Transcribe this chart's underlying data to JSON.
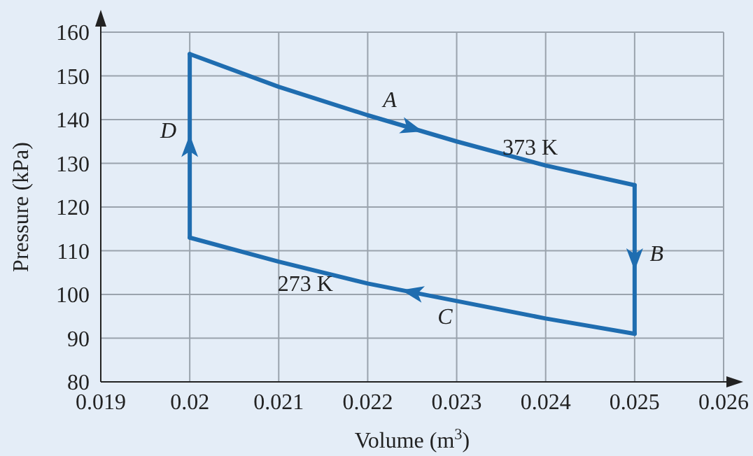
{
  "chart_data": {
    "type": "line",
    "xlabel": "Volume (m$^{3}$)",
    "ylabel": "Pressure (kPa)",
    "series": [
      {
        "color": "#1f6db0",
        "x": [
          0.02,
          0.021,
          0.022,
          0.023,
          0.024,
          0.025
        ],
        "values": [
          155,
          147.5,
          141,
          135,
          129.5,
          125
        ]
      },
      {
        "color": "#1f6db0",
        "x": [
          0.025,
          0.025
        ],
        "values": [
          125,
          91
        ]
      },
      {
        "color": "#1f6db0",
        "x": [
          0.025,
          0.024,
          0.023,
          0.022,
          0.021,
          0.02
        ],
        "values": [
          91,
          94.5,
          98.5,
          102.5,
          107.5,
          113
        ]
      },
      {
        "color": "#1f6db0",
        "x": [
          0.02,
          0.02
        ],
        "values": [
          113,
          155
        ]
      }
    ],
    "xlim": [
      0.019,
      0.026
    ],
    "xticks": [
      0.019,
      0.02,
      0.021,
      0.022,
      0.023,
      0.024,
      0.025,
      0.026
    ],
    "ylim": [
      80,
      160
    ],
    "yticks": [
      80,
      90,
      100,
      110,
      120,
      130,
      140,
      150,
      160
    ],
    "grid": true,
    "marker": "none",
    "line_style": "solid",
    "annotations": [
      {
        "text": "A",
        "x": 0.0223,
        "y": 140
      },
      {
        "text": "373 K",
        "x": 0.0236,
        "y": 131.5
      },
      {
        "text": "D",
        "x": 0.02,
        "y": 136
      },
      {
        "text": "B",
        "x": 0.025,
        "y": 110
      },
      {
        "text": "273 K",
        "x": 0.0215,
        "y": 105
      },
      {
        "text": "C",
        "x": 0.0228,
        "y": 99
      }
    ]
  }
}
